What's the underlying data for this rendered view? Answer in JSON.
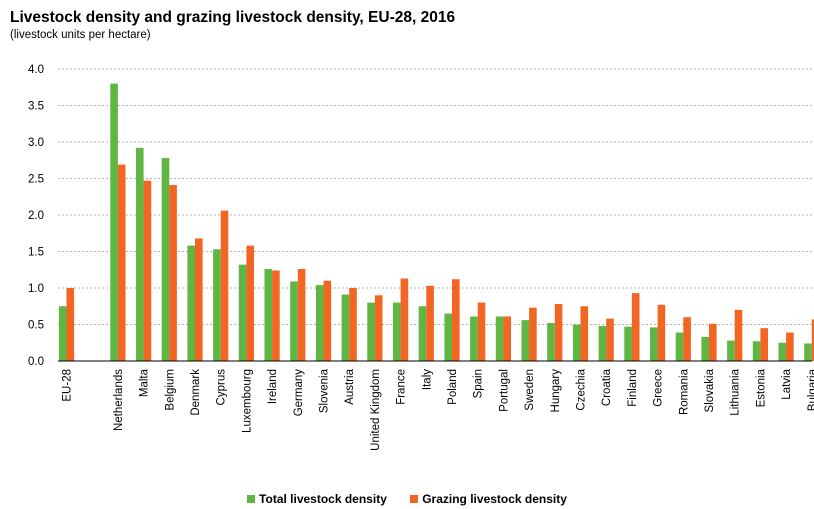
{
  "chart_data": {
    "type": "bar",
    "title": "Livestock density and grazing livestock density, EU-28, 2016",
    "subtitle": "(livestock units per hectare)",
    "xlabel": "",
    "ylabel": "",
    "ylim": [
      0,
      4.0
    ],
    "yticks": [
      "0.0",
      "0.5",
      "1.0",
      "1.5",
      "2.0",
      "2.5",
      "3.0",
      "3.5",
      "4.0"
    ],
    "grid": true,
    "legend_position": "bottom",
    "categories": [
      "EU-28",
      "",
      "Netherlands",
      "Malta",
      "Belgium",
      "Denmark",
      "Cyprus",
      "Luxembourg",
      "Ireland",
      "Germany",
      "Slovenia",
      "Austria",
      "United Kingdom",
      "France",
      "Italy",
      "Poland",
      "Spain",
      "Portugal",
      "Sweden",
      "Hungary",
      "Czechia",
      "Croatia",
      "Finland",
      "Greece",
      "Romania",
      "Slovakia",
      "Lithuania",
      "Estonia",
      "Latvia",
      "Bulgaria"
    ],
    "series": [
      {
        "name": "Total livestock density",
        "color": "#5fb643",
        "values": [
          0.75,
          null,
          3.8,
          2.92,
          2.78,
          1.58,
          1.53,
          1.32,
          1.26,
          1.09,
          1.04,
          0.91,
          0.8,
          0.8,
          0.75,
          0.65,
          0.61,
          0.61,
          0.56,
          0.52,
          0.5,
          0.48,
          0.47,
          0.46,
          0.39,
          0.33,
          0.28,
          0.27,
          0.25,
          0.24
        ]
      },
      {
        "name": "Grazing livestock density",
        "color": "#f26522",
        "values": [
          1.0,
          null,
          2.69,
          2.47,
          2.41,
          1.68,
          2.06,
          1.58,
          1.24,
          1.26,
          1.1,
          1.0,
          0.9,
          1.13,
          1.03,
          1.12,
          0.8,
          0.61,
          0.73,
          0.78,
          0.75,
          0.58,
          0.93,
          0.77,
          0.6,
          0.51,
          0.7,
          0.45,
          0.39,
          0.57
        ]
      }
    ]
  }
}
